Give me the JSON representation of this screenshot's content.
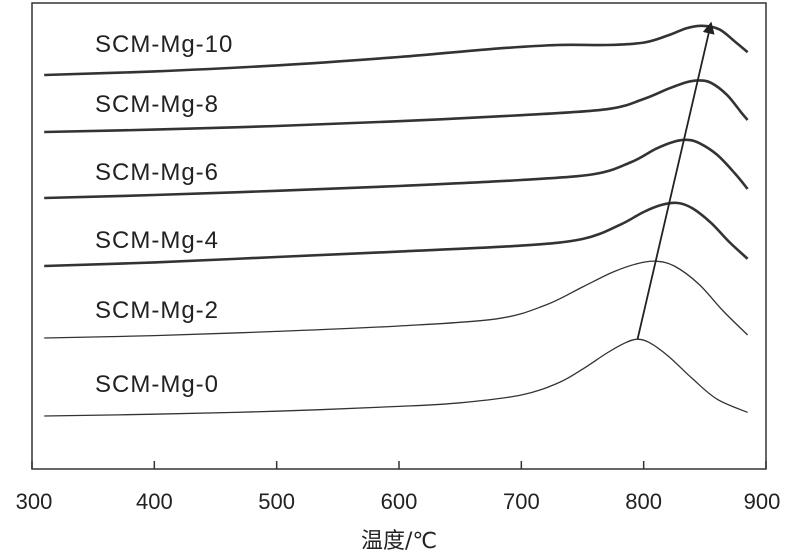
{
  "chart_data": {
    "type": "line",
    "title": "",
    "xlabel": "温度/℃",
    "ylabel": "",
    "xlim": [
      300,
      900
    ],
    "x_ticks": [
      300,
      400,
      500,
      600,
      700,
      800,
      900
    ],
    "grid": false,
    "legend": "none",
    "arrow": {
      "from_series": "SCM-Mg-0",
      "to_series": "SCM-Mg-10",
      "from_x": 795,
      "to_x": 855
    },
    "series": [
      {
        "name": "SCM-Mg-0",
        "x": [
          310,
          400,
          500,
          600,
          650,
          700,
          730,
          750,
          770,
          785,
          795,
          805,
          820,
          840,
          860,
          885
        ],
        "y": [
          0.0,
          0.03,
          0.08,
          0.16,
          0.22,
          0.35,
          0.55,
          0.78,
          1.05,
          1.22,
          1.28,
          1.22,
          1.0,
          0.62,
          0.28,
          0.06
        ]
      },
      {
        "name": "SCM-Mg-2",
        "x": [
          310,
          400,
          500,
          600,
          680,
          720,
          750,
          775,
          795,
          810,
          825,
          845,
          865,
          885
        ],
        "y": [
          0.0,
          0.04,
          0.11,
          0.2,
          0.32,
          0.55,
          0.85,
          1.1,
          1.24,
          1.28,
          1.2,
          0.9,
          0.45,
          0.05
        ]
      },
      {
        "name": "SCM-Mg-4",
        "x": [
          310,
          400,
          500,
          600,
          700,
          750,
          780,
          800,
          815,
          828,
          840,
          855,
          870,
          885
        ],
        "y": [
          0.0,
          0.06,
          0.15,
          0.24,
          0.34,
          0.45,
          0.68,
          0.9,
          1.02,
          1.05,
          0.96,
          0.72,
          0.4,
          0.12
        ]
      },
      {
        "name": "SCM-Mg-6",
        "x": [
          310,
          400,
          500,
          600,
          700,
          760,
          790,
          810,
          825,
          835,
          845,
          860,
          875,
          885
        ],
        "y": [
          0.0,
          0.05,
          0.12,
          0.2,
          0.3,
          0.4,
          0.6,
          0.82,
          0.94,
          0.97,
          0.92,
          0.72,
          0.4,
          0.15
        ]
      },
      {
        "name": "SCM-Mg-8",
        "x": [
          310,
          400,
          500,
          600,
          700,
          770,
          800,
          820,
          835,
          845,
          855,
          868,
          880,
          885
        ],
        "y": [
          0.0,
          0.04,
          0.1,
          0.18,
          0.28,
          0.38,
          0.55,
          0.72,
          0.83,
          0.86,
          0.82,
          0.62,
          0.32,
          0.2
        ]
      },
      {
        "name": "SCM-Mg-10",
        "x": [
          310,
          400,
          500,
          600,
          680,
          730,
          770,
          800,
          820,
          835,
          848,
          862,
          875,
          885
        ],
        "y": [
          0.0,
          0.06,
          0.16,
          0.3,
          0.44,
          0.5,
          0.5,
          0.54,
          0.66,
          0.78,
          0.82,
          0.76,
          0.55,
          0.38
        ]
      }
    ]
  }
}
